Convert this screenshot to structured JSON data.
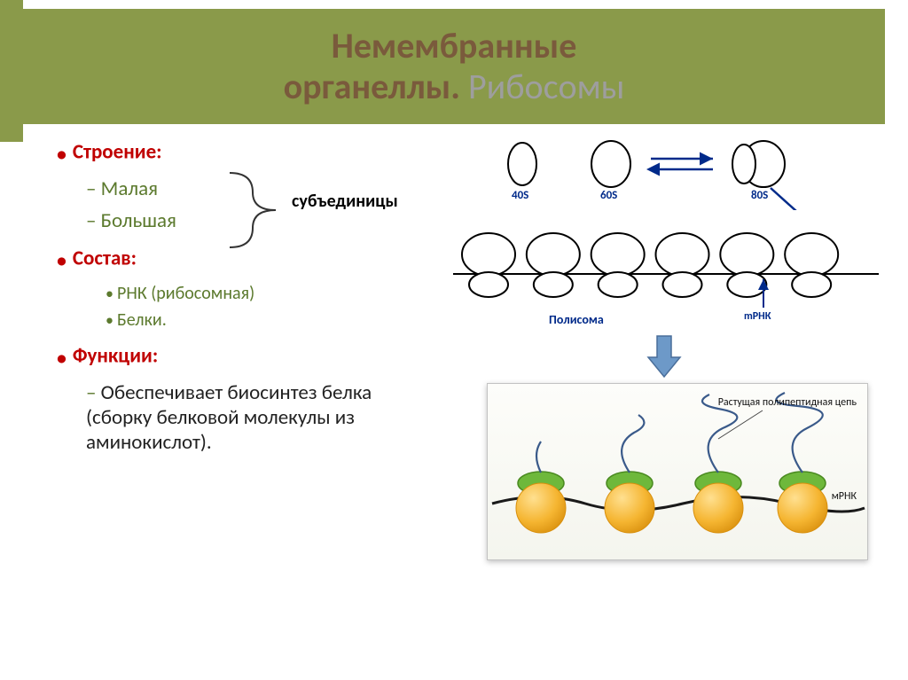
{
  "colors": {
    "accent": "#8a9a4a",
    "title_strong": "#7a5a3c",
    "title_light": "#9e9e9e",
    "bullet_red": "#c00000",
    "sub_green": "#5c7a2e",
    "body": "#222222",
    "diagram_blue": "#002a8a",
    "arrow_fill": "#6d99c8",
    "arrow_stroke": "#4a6e9a",
    "ribosome_orange": "#f5b531",
    "ribosome_orange_dark": "#d88f0d",
    "ribosome_green": "#6eb83b",
    "ribosome_green_dark": "#4a8a20",
    "mrna_line": "#1a1a1a",
    "peptide_line": "#3a5a8a"
  },
  "title": {
    "line1": "Немембранные",
    "line2_strong": "органеллы.",
    "line2_light": "Рибосомы",
    "fontsize": 40
  },
  "text": {
    "heading1": "Строение:",
    "heading2": "Состав:",
    "heading3": "Функции:",
    "sub1a": "Малая",
    "sub1b": "Большая",
    "sub2a": "РНК (рибосомная)",
    "sub2b": "Белки.",
    "sub3a": "Обеспечивает биосинтез белка (сборку белковой молекулы из аминокислот).",
    "brace_label": "субъединицы"
  },
  "diagram_top": {
    "labels": [
      "40S",
      "60S",
      "80S"
    ],
    "polysome_label": "Полисома",
    "mrna_label": "mРНК",
    "ribosome_count": 6
  },
  "diagram_bottom": {
    "peptide_label": "Растущая полипептидная цепь",
    "mrna_label": "мРНК",
    "ribosome_count": 4
  }
}
